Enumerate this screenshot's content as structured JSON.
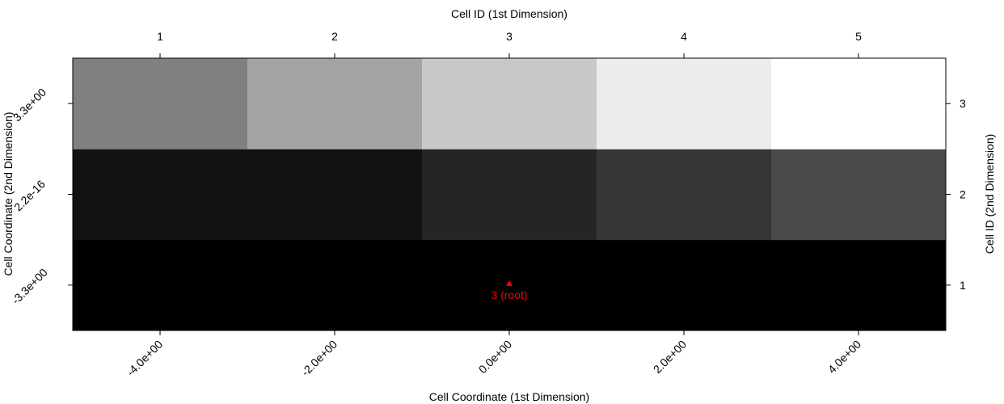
{
  "chart_data": {
    "type": "heatmap",
    "title": "",
    "top_axis_label": "Cell ID (1st Dimension)",
    "right_axis_label": "Cell ID (2nd Dimension)",
    "xlabel": "Cell Coordinate (1st Dimension)",
    "ylabel": "Cell Coordinate (2nd Dimension)",
    "top_tick_labels": [
      "1",
      "2",
      "3",
      "4",
      "5"
    ],
    "right_tick_labels": [
      "1",
      "2",
      "3"
    ],
    "x_tick_labels": [
      "-4.0e+00",
      "-2.0e+00",
      "0.0e+00",
      "2.0e+00",
      "4.0e+00"
    ],
    "y_tick_labels": [
      "-3.3e+00",
      "2.2e-16",
      "3.3e+00"
    ],
    "x": [
      -4.0,
      -2.0,
      0.0,
      2.0,
      4.0
    ],
    "y": [
      -3.3,
      2.2e-16,
      3.3
    ],
    "colors": [
      [
        "#000000",
        "#000000",
        "#000000",
        "#000000",
        "#000000"
      ],
      [
        "#111111",
        "#111111",
        "#252525",
        "#353535",
        "#4a4a4a"
      ],
      [
        "#808080",
        "#a3a3a3",
        "#c8c8c8",
        "#ececec",
        "#ffffff"
      ]
    ],
    "annotations": [
      {
        "label": "3 (root)",
        "x": 0.0,
        "y": -3.3,
        "marker": "triangle",
        "color": "#ff0000"
      }
    ],
    "grid": false
  }
}
